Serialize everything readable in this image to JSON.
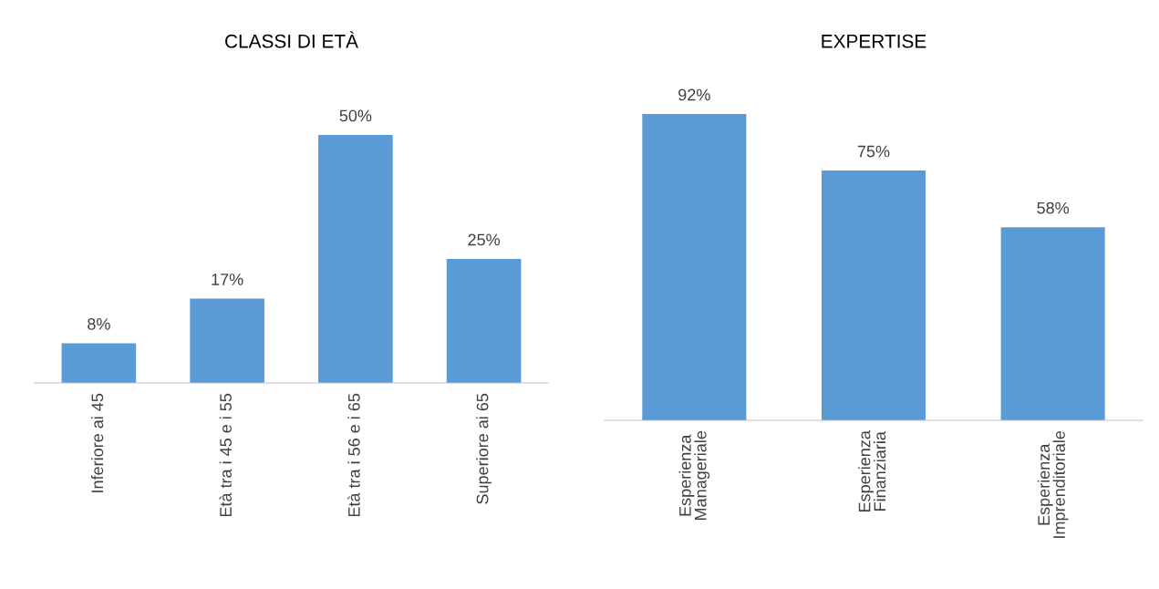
{
  "chart_data": [
    {
      "type": "bar",
      "title": "CLASSI DI ETÀ",
      "categories": [
        "Inferiore ai 45",
        "Età tra i 45 e i 55",
        "Età tra i 56 e i 65",
        "Superiore ai 65"
      ],
      "values": [
        8,
        17,
        50,
        25
      ],
      "value_labels": [
        "8%",
        "17%",
        "50%",
        "25%"
      ],
      "color": "#5b9bd5",
      "grid": false,
      "legend": false,
      "tick_labels": "x"
    },
    {
      "type": "bar",
      "title": "EXPERTISE",
      "categories": [
        "Esperienza\nManageriale",
        "Esperienza\nFinanziaria",
        "Esperienza\nImprenditoriale"
      ],
      "values": [
        92,
        75,
        58
      ],
      "value_labels": [
        "92%",
        "75%",
        "58%"
      ],
      "color": "#5b9bd5",
      "grid": false,
      "legend": false,
      "tick_labels": "x"
    }
  ]
}
